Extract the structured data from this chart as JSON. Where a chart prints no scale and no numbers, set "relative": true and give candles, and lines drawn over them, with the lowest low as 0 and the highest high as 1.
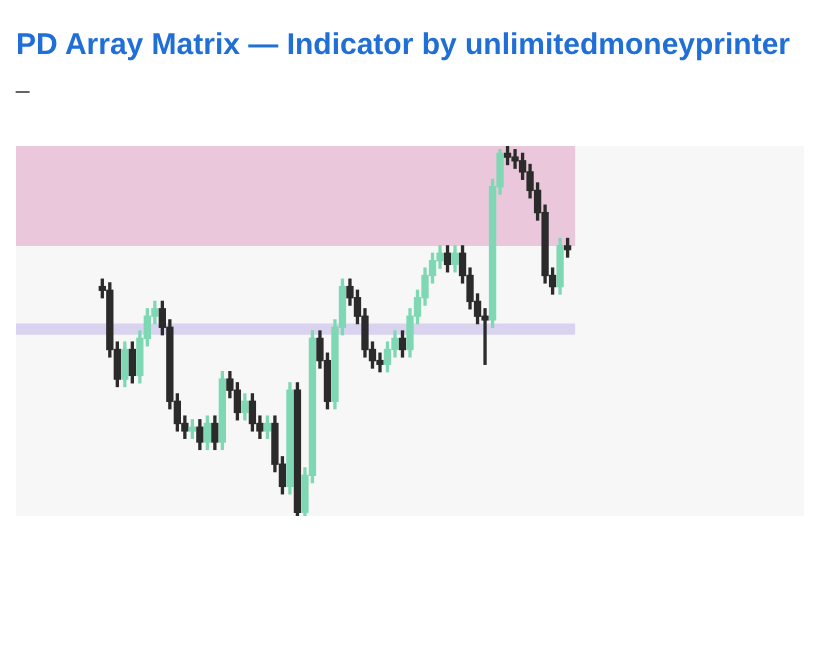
{
  "chart_data": {
    "type": "candlestick",
    "title": "PD Array Matrix — Indicator by unlimitedmoneyprinter",
    "subtitle": "_",
    "relative": true,
    "categories": [
      null,
      null,
      null,
      null,
      null,
      null,
      null,
      null,
      null,
      null,
      null,
      null,
      null,
      null,
      null,
      null,
      null,
      null,
      null,
      null,
      null,
      null,
      null,
      null,
      null,
      null,
      null,
      null,
      null,
      null,
      null,
      null,
      null,
      null,
      null,
      null,
      null,
      null,
      null,
      null,
      null,
      null,
      null,
      null,
      null,
      null,
      null,
      null,
      null,
      null,
      null,
      null,
      null,
      null,
      null,
      null,
      null,
      null,
      null,
      null,
      null,
      null,
      null
    ],
    "ohlc": [
      [
        0.62,
        0.64,
        0.59,
        0.61
      ],
      [
        0.61,
        0.63,
        0.43,
        0.45
      ],
      [
        0.45,
        0.47,
        0.35,
        0.37
      ],
      [
        0.37,
        0.47,
        0.35,
        0.45
      ],
      [
        0.45,
        0.47,
        0.36,
        0.38
      ],
      [
        0.38,
        0.5,
        0.36,
        0.48
      ],
      [
        0.48,
        0.56,
        0.46,
        0.54
      ],
      [
        0.54,
        0.58,
        0.52,
        0.56
      ],
      [
        0.56,
        0.58,
        0.49,
        0.51
      ],
      [
        0.51,
        0.53,
        0.29,
        0.31
      ],
      [
        0.31,
        0.33,
        0.23,
        0.25
      ],
      [
        0.25,
        0.27,
        0.21,
        0.23
      ],
      [
        0.23,
        0.26,
        0.21,
        0.24
      ],
      [
        0.24,
        0.26,
        0.18,
        0.2
      ],
      [
        0.2,
        0.27,
        0.18,
        0.25
      ],
      [
        0.25,
        0.27,
        0.18,
        0.2
      ],
      [
        0.2,
        0.39,
        0.18,
        0.37
      ],
      [
        0.37,
        0.39,
        0.32,
        0.34
      ],
      [
        0.34,
        0.36,
        0.26,
        0.28
      ],
      [
        0.28,
        0.33,
        0.26,
        0.31
      ],
      [
        0.31,
        0.33,
        0.23,
        0.25
      ],
      [
        0.25,
        0.27,
        0.21,
        0.23
      ],
      [
        0.23,
        0.27,
        0.21,
        0.25
      ],
      [
        0.25,
        0.27,
        0.12,
        0.14
      ],
      [
        0.14,
        0.16,
        0.06,
        0.08
      ],
      [
        0.08,
        0.36,
        0.06,
        0.34
      ],
      [
        0.34,
        0.36,
        0,
        0.01
      ],
      [
        0.01,
        0.13,
        0,
        0.11
      ],
      [
        0.11,
        0.5,
        0.09,
        0.48
      ],
      [
        0.48,
        0.5,
        0.4,
        0.42
      ],
      [
        0.42,
        0.44,
        0.29,
        0.31
      ],
      [
        0.31,
        0.53,
        0.29,
        0.51
      ],
      [
        0.51,
        0.64,
        0.49,
        0.62
      ],
      [
        0.62,
        0.64,
        0.57,
        0.59
      ],
      [
        0.59,
        0.61,
        0.52,
        0.54
      ],
      [
        0.54,
        0.56,
        0.43,
        0.45
      ],
      [
        0.45,
        0.47,
        0.4,
        0.42
      ],
      [
        0.42,
        0.44,
        0.39,
        0.41
      ],
      [
        0.41,
        0.47,
        0.39,
        0.45
      ],
      [
        0.45,
        0.5,
        0.43,
        0.48
      ],
      [
        0.48,
        0.5,
        0.43,
        0.45
      ],
      [
        0.45,
        0.56,
        0.43,
        0.54
      ],
      [
        0.54,
        0.61,
        0.52,
        0.59
      ],
      [
        0.59,
        0.67,
        0.57,
        0.65
      ],
      [
        0.65,
        0.71,
        0.63,
        0.69
      ],
      [
        0.69,
        0.73,
        0.67,
        0.71
      ],
      [
        0.71,
        0.73,
        0.66,
        0.68
      ],
      [
        0.68,
        0.73,
        0.66,
        0.71
      ],
      [
        0.71,
        0.73,
        0.63,
        0.65
      ],
      [
        0.65,
        0.67,
        0.56,
        0.58
      ],
      [
        0.58,
        0.6,
        0.52,
        0.54
      ],
      [
        0.54,
        0.56,
        0.41,
        0.53
      ],
      [
        0.53,
        0.91,
        0.51,
        0.89
      ],
      [
        0.89,
        0.99,
        0.87,
        0.98
      ],
      [
        0.98,
        1,
        0.95,
        0.97
      ],
      [
        0.97,
        0.99,
        0.94,
        0.96
      ],
      [
        0.96,
        0.98,
        0.91,
        0.93
      ],
      [
        0.93,
        0.95,
        0.86,
        0.88
      ],
      [
        0.88,
        0.9,
        0.8,
        0.82
      ],
      [
        0.82,
        0.84,
        0.63,
        0.65
      ],
      [
        0.65,
        0.67,
        0.6,
        0.62
      ],
      [
        0.62,
        0.75,
        0.6,
        0.73
      ],
      [
        0.73,
        0.75,
        0.7,
        0.72
      ]
    ],
    "bands": [
      {
        "axis": "y",
        "from": 0.73,
        "to": 1,
        "color": "#eac7da"
      },
      {
        "axis": "y",
        "from": 0.49,
        "to": 0.52,
        "color": "#d9d3ef"
      }
    ]
  }
}
